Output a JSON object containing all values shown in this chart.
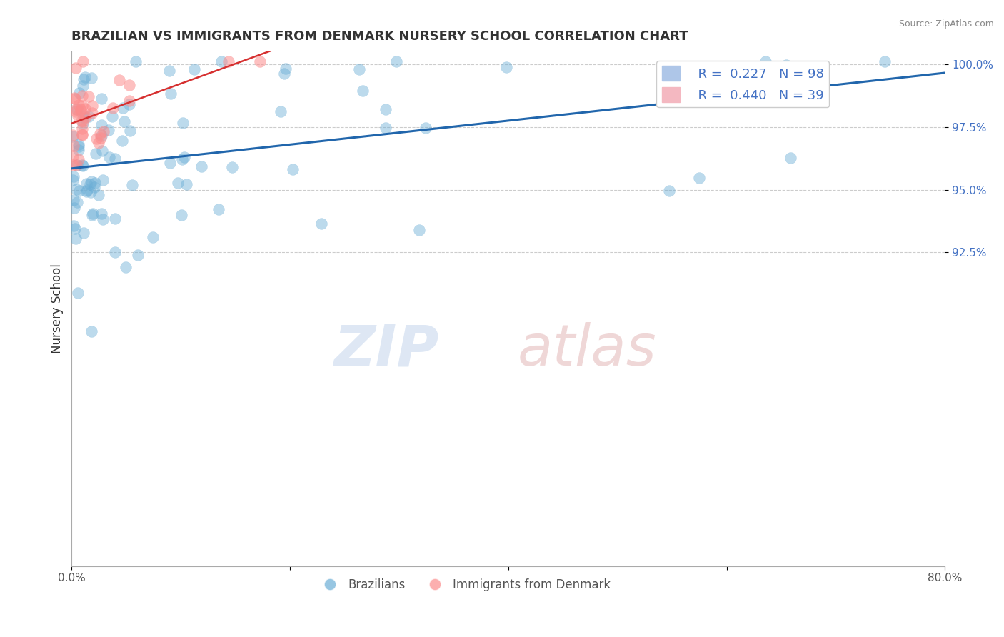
{
  "title": "BRAZILIAN VS IMMIGRANTS FROM DENMARK NURSERY SCHOOL CORRELATION CHART",
  "source": "Source: ZipAtlas.com",
  "xlabel": "",
  "ylabel": "Nursery School",
  "xlim": [
    0.0,
    0.8
  ],
  "ylim": [
    0.8,
    1.005
  ],
  "R_blue": 0.227,
  "N_blue": 98,
  "R_pink": 0.44,
  "N_pink": 39,
  "blue_color": "#6baed6",
  "pink_color": "#fc8d8d",
  "blue_line_color": "#2166ac",
  "pink_line_color": "#d63030",
  "legend_blue_label": "Brazilians",
  "legend_pink_label": "Immigrants from Denmark",
  "background_color": "#ffffff",
  "grid_color": "#cccccc"
}
